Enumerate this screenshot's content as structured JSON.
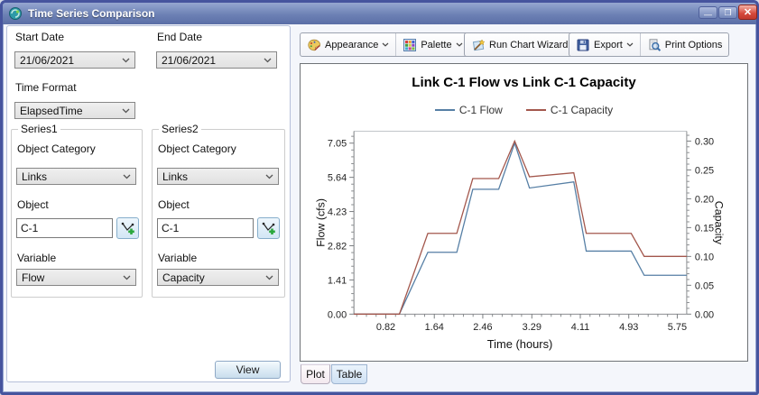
{
  "window": {
    "title": "Time Series Comparison",
    "minimize_glyph": "—",
    "maximize_glyph": "❐",
    "close_glyph": "✕"
  },
  "left_panel": {
    "start_date": {
      "label": "Start Date",
      "value": "21/06/2021"
    },
    "end_date": {
      "label": "End Date",
      "value": "21/06/2021"
    },
    "time_format": {
      "label": "Time Format",
      "value": "ElapsedTime"
    },
    "series1": {
      "legend": "Series1",
      "object_category_label": "Object Category",
      "object_category": "Links",
      "object_label": "Object",
      "object": "C-1",
      "variable_label": "Variable",
      "variable": "Flow"
    },
    "series2": {
      "legend": "Series2",
      "object_category_label": "Object Category",
      "object_category": "Links",
      "object_label": "Object",
      "object": "C-1",
      "variable_label": "Variable",
      "variable": "Capacity"
    },
    "view_button": "View"
  },
  "toolbar": {
    "appearance": "Appearance",
    "palette": "Palette",
    "run_chart_wizard": "Run Chart Wizard",
    "export": "Export",
    "print_options": "Print Options"
  },
  "tabs": [
    {
      "label": "Plot",
      "active": true
    },
    {
      "label": "Table",
      "active": false
    }
  ],
  "icons": {
    "app": "droplet-swirl",
    "appearance": "paint-palette",
    "palette": "color-grid",
    "run_chart_wizard": "magic-wand",
    "export": "floppy-disk",
    "print_options": "magnifier-page",
    "object_picker": "polyline-add",
    "combo_chevron": "chevron-down"
  },
  "colors": {
    "titlebar": "#6d81b5",
    "window_border": "#46549e",
    "close_button": "#c03a2e",
    "flow_line": "#567fa5",
    "capacity_line": "#a3574c"
  },
  "chart_data": {
    "type": "line",
    "title": "Link C-1 Flow vs Link C-1 Capacity",
    "xlabel": "Time (hours)",
    "ylabel_left": "Flow (cfs)",
    "ylabel_right": "Capacity",
    "x_ticks": [
      0.82,
      1.64,
      2.46,
      3.29,
      4.11,
      4.93,
      5.75
    ],
    "y_left_ticks": [
      0.0,
      1.41,
      2.82,
      4.23,
      5.64,
      7.05
    ],
    "y_right_ticks": [
      0.0,
      0.05,
      0.1,
      0.15,
      0.2,
      0.25,
      0.3
    ],
    "xlim": [
      0.28,
      5.91
    ],
    "ylim_left": [
      0,
      7.54
    ],
    "ylim_right": [
      0,
      0.317
    ],
    "grid": false,
    "legend_position": "top-center",
    "series": [
      {
        "name": "C-1 Flow",
        "axis": "left",
        "color": "#567fa5",
        "points": [
          [
            0.28,
            0
          ],
          [
            1.05,
            0
          ],
          [
            1.53,
            2.55
          ],
          [
            2.02,
            2.55
          ],
          [
            2.29,
            5.15
          ],
          [
            2.73,
            5.15
          ],
          [
            3.0,
            7.05
          ],
          [
            3.25,
            5.2
          ],
          [
            4.0,
            5.45
          ],
          [
            4.21,
            2.6
          ],
          [
            4.97,
            2.6
          ],
          [
            5.19,
            1.6
          ],
          [
            5.91,
            1.6
          ]
        ]
      },
      {
        "name": "C-1 Capacity",
        "axis": "right",
        "color": "#a3574c",
        "points": [
          [
            0.28,
            0
          ],
          [
            1.05,
            0
          ],
          [
            1.53,
            0.14
          ],
          [
            2.02,
            0.14
          ],
          [
            2.29,
            0.235
          ],
          [
            2.73,
            0.235
          ],
          [
            3.0,
            0.3
          ],
          [
            3.25,
            0.238
          ],
          [
            4.0,
            0.245
          ],
          [
            4.21,
            0.14
          ],
          [
            4.97,
            0.14
          ],
          [
            5.19,
            0.1
          ],
          [
            5.91,
            0.1
          ]
        ]
      }
    ]
  }
}
